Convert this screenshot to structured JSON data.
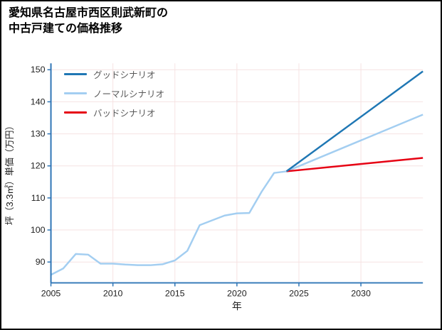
{
  "header": {
    "title_lines": [
      "愛知県名古屋市西区則武新町の",
      "中古戸建ての価格推移"
    ]
  },
  "chart_data": {
    "type": "line",
    "title": "愛知県名古屋市西区則武新町の中古戸建ての価格推移",
    "xlabel": "年",
    "ylabel": "坪（3.3㎡）単価（万円）",
    "xlim": [
      2005,
      2035
    ],
    "ylim": [
      83.5,
      152
    ],
    "xticks": [
      2005,
      2010,
      2015,
      2020,
      2025,
      2030
    ],
    "yticks": [
      90,
      100,
      110,
      120,
      130,
      140,
      150
    ],
    "grid": true,
    "legend_position": "top-left",
    "colors": {
      "axis": "#2e75b6",
      "grid": "#f6e2e2",
      "text": "#222222",
      "good": "#1f77b4",
      "normal": "#a3cef1",
      "bad": "#e60012"
    },
    "series": [
      {
        "id": "historical",
        "color": "#a3cef1",
        "x": [
          2005,
          2006,
          2007,
          2008,
          2009,
          2010,
          2011,
          2012,
          2013,
          2014,
          2015,
          2016,
          2017,
          2018,
          2019,
          2020,
          2021,
          2022,
          2023,
          2024
        ],
        "values": [
          86,
          88,
          92.5,
          92.3,
          89.5,
          89.5,
          89.2,
          89,
          89,
          89.3,
          90.5,
          93.5,
          101.5,
          103,
          104.5,
          105.2,
          105.3,
          112,
          117.8,
          118.3
        ]
      },
      {
        "id": "good-scenario",
        "label": "グッドシナリオ",
        "color": "#1f77b4",
        "x": [
          2024,
          2035
        ],
        "values": [
          118.3,
          149.5
        ]
      },
      {
        "id": "normal-scenario",
        "label": "ノーマルシナリオ",
        "color": "#a3cef1",
        "x": [
          2024,
          2035
        ],
        "values": [
          118.3,
          136
        ]
      },
      {
        "id": "bad-scenario",
        "label": "バッドシナリオ",
        "color": "#e60012",
        "x": [
          2024,
          2035
        ],
        "values": [
          118.3,
          122.5
        ]
      }
    ]
  }
}
